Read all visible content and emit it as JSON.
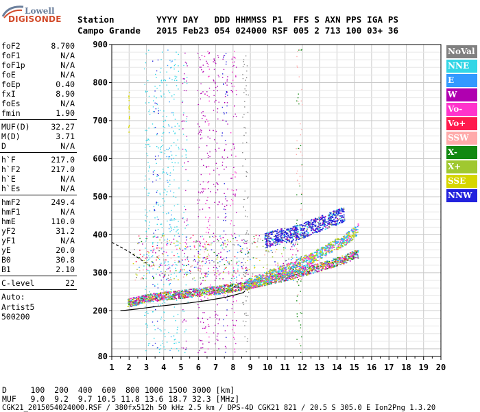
{
  "logo": {
    "line1": "Lowell",
    "line2": "DIGISONDE"
  },
  "header": {
    "labels": "Station        YYYY DAY   DDD HHMMSS P1  FFS S AXN PPS IGA PS",
    "values": "Campo Grande   2015 Feb23 054 024000 RSF 005 2 713 100 03+ 36"
  },
  "params": {
    "group1": [
      {
        "name": "foF2",
        "value": "8.700"
      },
      {
        "name": "foF1",
        "value": "N/A"
      },
      {
        "name": "foF1p",
        "value": "N/A"
      },
      {
        "name": "foE",
        "value": "N/A"
      },
      {
        "name": "foEp",
        "value": "0.40"
      },
      {
        "name": "fxI",
        "value": "8.90"
      },
      {
        "name": "foEs",
        "value": "N/A"
      },
      {
        "name": "fmin",
        "value": "1.90"
      }
    ],
    "group2": [
      {
        "name": "MUF(D)",
        "value": "32.27"
      },
      {
        "name": "M(D)",
        "value": "3.71"
      },
      {
        "name": "D",
        "value": "N/A"
      }
    ],
    "group3": [
      {
        "name": "h`F",
        "value": "217.0"
      },
      {
        "name": "h`F2",
        "value": "217.0"
      },
      {
        "name": "h`E",
        "value": "N/A"
      },
      {
        "name": "h`Es",
        "value": "N/A"
      }
    ],
    "group4": [
      {
        "name": "hmF2",
        "value": "249.4"
      },
      {
        "name": "hmF1",
        "value": "N/A"
      },
      {
        "name": "hmE",
        "value": "110.0"
      },
      {
        "name": "yF2",
        "value": "31.2"
      },
      {
        "name": "yF1",
        "value": "N/A"
      },
      {
        "name": "yE",
        "value": "20.0"
      },
      {
        "name": "B0",
        "value": "30.8"
      },
      {
        "name": "B1",
        "value": "2.10"
      }
    ],
    "group5": [
      {
        "name": "C-level",
        "value": "22"
      }
    ],
    "autoscale": [
      "Auto:",
      "Artist5",
      "500200"
    ]
  },
  "legend": [
    {
      "label": "NoVal",
      "color": "#808080"
    },
    {
      "label": "NNE",
      "color": "#33d6e6"
    },
    {
      "label": "E",
      "color": "#3399ff"
    },
    {
      "label": "W",
      "color": "#b000b0"
    },
    {
      "label": "Vo-",
      "color": "#ff33cc"
    },
    {
      "label": "Vo+",
      "color": "#ff1a4d"
    },
    {
      "label": "SSW",
      "color": "#ffaaaa"
    },
    {
      "label": "X-",
      "color": "#118811"
    },
    {
      "label": "X+",
      "color": "#a0c830"
    },
    {
      "label": "SSE",
      "color": "#d6d600"
    },
    {
      "label": "NNW",
      "color": "#2222dd"
    }
  ],
  "bottom": {
    "d_row": "D     100  200  400  600  800 1000 1500 3000 [km]",
    "muf_row": "MUF   9.0  9.2  9.7 10.5 11.8 13.6 18.7 32.3 [MHz]",
    "footer": "CGK21_2015054024000.RSF / 380fx512h 50 kHz 2.5 km / DPS-4D CGK21 821 / 20.5 S 305.0 E Ion2Png 1.3.20"
  },
  "chart_data": {
    "type": "scatter",
    "xlim": [
      1,
      20
    ],
    "ylim": [
      80,
      900
    ],
    "x_ticks": [
      1,
      2,
      3,
      4,
      5,
      6,
      7,
      8,
      9,
      10,
      11,
      12,
      13,
      14,
      15,
      16,
      17,
      18,
      19,
      20
    ],
    "y_ticks": [
      80,
      200,
      300,
      400,
      500,
      600,
      700,
      800,
      900
    ],
    "grid": true,
    "trace_O": {
      "x": [
        1.9,
        2.5,
        3.0,
        4.0,
        5.0,
        6.0,
        7.0,
        8.0,
        8.7,
        9.5,
        10.5,
        11.5,
        12.5,
        13.5,
        14.5,
        15.0
      ],
      "y": [
        222,
        228,
        234,
        240,
        245,
        250,
        255,
        262,
        268,
        276,
        286,
        296,
        310,
        323,
        338,
        350
      ]
    },
    "trace_X": {
      "x": [
        8.7,
        9.5,
        10.5,
        11.5,
        12.5,
        13.5,
        14.5,
        15.2
      ],
      "y": [
        268,
        282,
        300,
        318,
        340,
        365,
        390,
        415
      ]
    },
    "echo_band": {
      "x": [
        9.8,
        10.5,
        11.2,
        11.6
      ],
      "y": [
        385,
        395,
        400,
        405
      ]
    },
    "profile_curve": {
      "x": [
        1.5,
        2.5,
        3.5,
        4.5,
        5.5,
        6.5,
        7.5,
        8.2,
        8.6,
        8.7
      ],
      "y": [
        200,
        205,
        211,
        216,
        221,
        227,
        235,
        243,
        248,
        253
      ]
    },
    "mufd_curve": {
      "x": [
        1.0,
        1.5,
        2.0,
        2.5,
        3.0
      ],
      "y": [
        380,
        368,
        355,
        340,
        325
      ]
    }
  }
}
